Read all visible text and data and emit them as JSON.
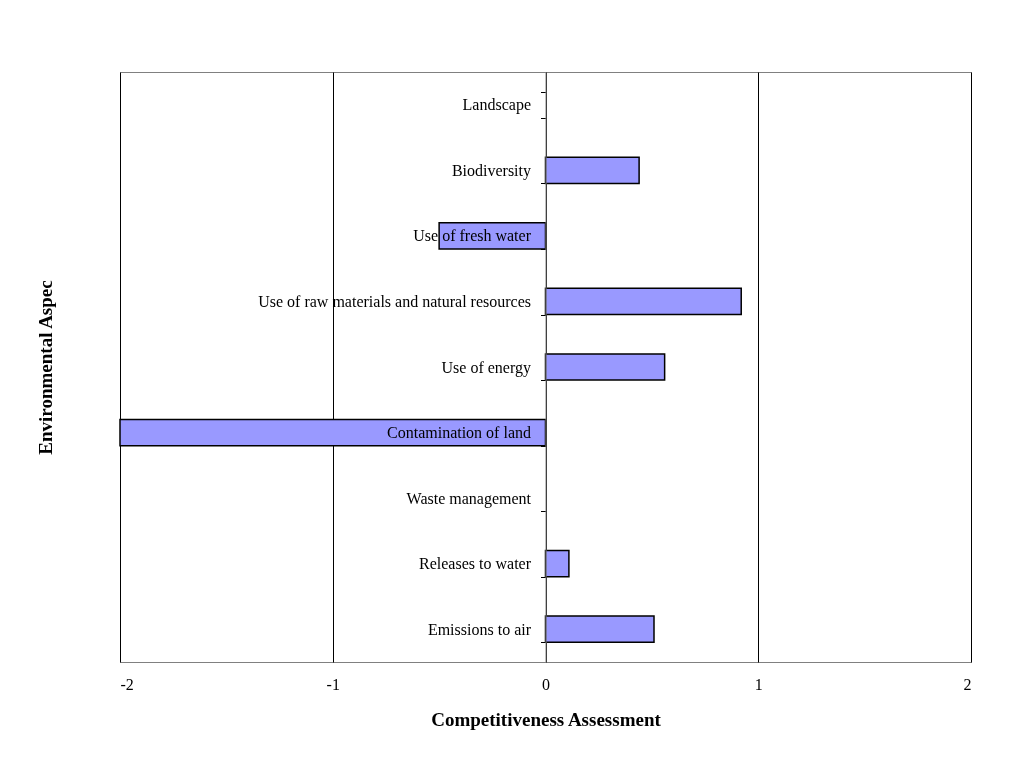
{
  "chart_data": {
    "type": "bar",
    "orientation": "horizontal",
    "xlabel": "Competitiveness Assessment",
    "ylabel": "Environmental Aspec",
    "categories": [
      "Landscape",
      "Biodiversity",
      "Use of fresh water",
      "Use of raw materials and natural resources",
      "Use of energy",
      "Contamination of land",
      "Waste management",
      "Releases to water",
      "Emissions to air"
    ],
    "values": [
      null,
      0.44,
      -0.5,
      0.92,
      0.56,
      -2,
      null,
      0.11,
      0.51
    ],
    "color": "#9999ff",
    "xlim": [
      -2,
      2
    ],
    "xticks": [
      -2,
      -1,
      0,
      1,
      2
    ],
    "grid": "x"
  }
}
